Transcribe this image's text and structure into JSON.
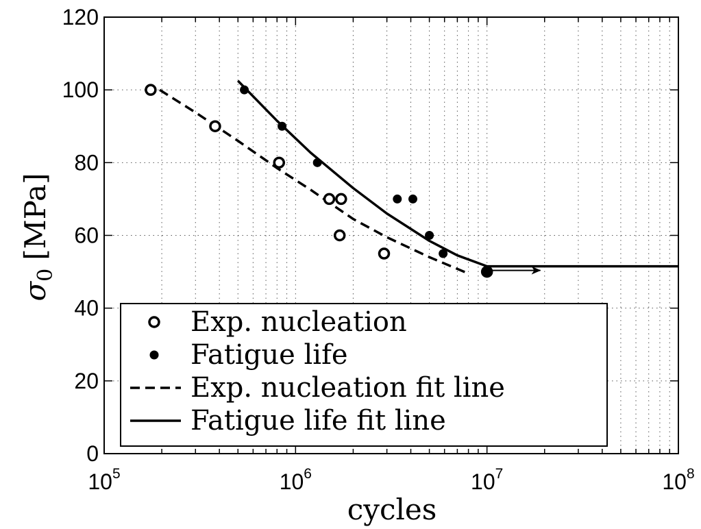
{
  "chart_data": {
    "type": "scatter",
    "title": "",
    "xlabel": "cycles",
    "ylabel": "σ",
    "ylabel_subscript": "0",
    "ylabel_unit": "[MPa]",
    "x_scale": "log",
    "xlim": [
      100000,
      100000000
    ],
    "ylim": [
      0,
      120
    ],
    "grid": true,
    "legend_position": "bottom-left",
    "x_ticks": [
      {
        "base": "10",
        "exp": "5"
      },
      {
        "base": "10",
        "exp": "6"
      },
      {
        "base": "10",
        "exp": "7"
      },
      {
        "base": "10",
        "exp": "8"
      }
    ],
    "y_ticks": [
      "0",
      "20",
      "40",
      "60",
      "80",
      "100",
      "120"
    ],
    "y_tick_values": [
      0,
      20,
      40,
      60,
      80,
      100,
      120
    ],
    "series": [
      {
        "name": "Exp. nucleation",
        "style": "open-circle",
        "points": [
          [
            175000,
            100
          ],
          [
            380000,
            90
          ],
          [
            820000,
            80
          ],
          [
            1500000,
            70
          ],
          [
            1730000,
            70
          ],
          [
            1700000,
            60
          ],
          [
            2900000,
            55
          ],
          [
            10000000,
            50
          ]
        ]
      },
      {
        "name": "Fatigue life",
        "style": "filled-circle",
        "points": [
          [
            540000,
            100
          ],
          [
            850000,
            90
          ],
          [
            1300000,
            80
          ],
          [
            3400000,
            70
          ],
          [
            4100000,
            70
          ],
          [
            5000000,
            60
          ],
          [
            5900000,
            55
          ],
          [
            10000000,
            50
          ]
        ]
      },
      {
        "name": "Exp. nucleation fit line",
        "style": "dashed",
        "points": [
          [
            195000,
            100
          ],
          [
            300000,
            93.8
          ],
          [
            500000,
            86
          ],
          [
            800000,
            78.5
          ],
          [
            1200000,
            72.5
          ],
          [
            2000000,
            64.5
          ],
          [
            3000000,
            59.5
          ],
          [
            5000000,
            54
          ],
          [
            8000000,
            49.5
          ]
        ]
      },
      {
        "name": "Fatigue life fit line",
        "style": "solid",
        "points": [
          [
            500000,
            102.5
          ],
          [
            800000,
            91.5
          ],
          [
            1200000,
            82.7
          ],
          [
            2000000,
            73
          ],
          [
            3000000,
            66
          ],
          [
            5000000,
            58.5
          ],
          [
            7000000,
            54.5
          ],
          [
            10000000,
            51.5
          ],
          [
            100000000,
            51.5
          ]
        ]
      }
    ],
    "annotations": [
      {
        "type": "arrow",
        "x_from": 10500000,
        "x_to": 19000000,
        "y": 50
      }
    ]
  }
}
